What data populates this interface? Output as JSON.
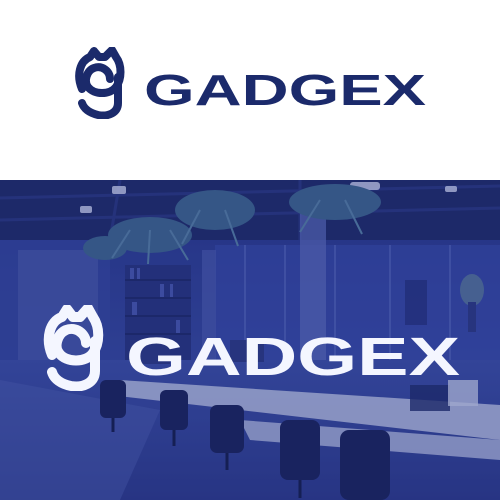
{
  "brand": {
    "wordmark": "GADGEX",
    "colors": {
      "navy": "#1b2a6b",
      "overlay": "#22307a",
      "white": "#f4f6ff"
    }
  }
}
